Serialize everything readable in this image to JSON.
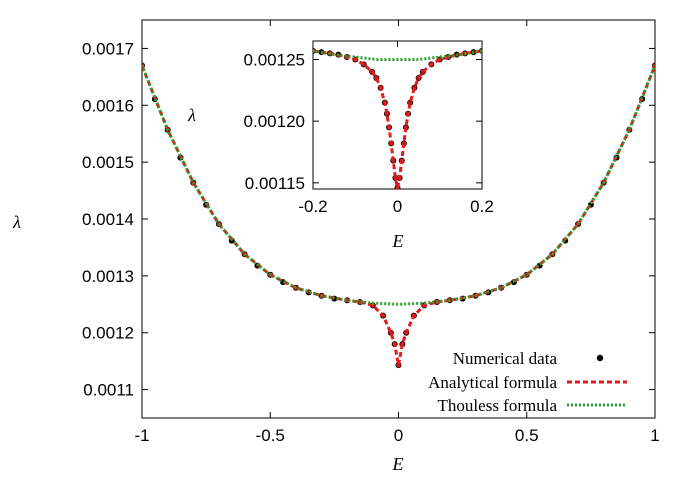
{
  "chart_data": [
    {
      "type": "scatter",
      "ylabel": "λ",
      "xlabel": "E",
      "xlim": [
        -1,
        1
      ],
      "ylim": [
        0.00105,
        0.00175
      ],
      "x_ticks": [
        "-1",
        "-0.5",
        "0",
        "0.5",
        "1"
      ],
      "y_ticks": [
        "0.0011",
        "0.0012",
        "0.0013",
        "0.0014",
        "0.0015",
        "0.0016",
        "0.0017"
      ],
      "legend_position": "bottom-right",
      "series": [
        {
          "name": "Numerical data",
          "style": "points",
          "color": "#000000",
          "x": [
            -1.0,
            -0.95,
            -0.9,
            -0.85,
            -0.8,
            -0.75,
            -0.7,
            -0.65,
            -0.6,
            -0.55,
            -0.5,
            -0.45,
            -0.4,
            -0.35,
            -0.3,
            -0.25,
            -0.2,
            -0.15,
            -0.1,
            -0.06,
            -0.03,
            -0.015,
            0.0,
            0.015,
            0.03,
            0.06,
            0.1,
            0.15,
            0.2,
            0.25,
            0.3,
            0.35,
            0.4,
            0.45,
            0.5,
            0.55,
            0.6,
            0.65,
            0.7,
            0.75,
            0.8,
            0.85,
            0.9,
            0.95,
            1.0
          ],
          "y": [
            0.00167,
            0.001611,
            0.001557,
            0.001508,
            0.001464,
            0.001425,
            0.001391,
            0.001362,
            0.001338,
            0.001318,
            0.001302,
            0.001289,
            0.001279,
            0.001271,
            0.001265,
            0.00126,
            0.001257,
            0.001254,
            0.001248,
            0.00123,
            0.0012,
            0.00118,
            0.001143,
            0.00118,
            0.0012,
            0.00123,
            0.001248,
            0.001254,
            0.001257,
            0.00126,
            0.001265,
            0.001271,
            0.001279,
            0.001289,
            0.001302,
            0.001318,
            0.001338,
            0.001362,
            0.001391,
            0.001425,
            0.001464,
            0.001508,
            0.001557,
            0.001611,
            0.00167
          ]
        },
        {
          "name": "Analytical formula",
          "style": "dashed",
          "color": "#e41a1c",
          "x": [
            -1.0,
            -0.9,
            -0.8,
            -0.7,
            -0.6,
            -0.5,
            -0.4,
            -0.3,
            -0.2,
            -0.15,
            -0.1,
            -0.06,
            -0.03,
            -0.015,
            0.0,
            0.015,
            0.03,
            0.06,
            0.1,
            0.15,
            0.2,
            0.3,
            0.4,
            0.5,
            0.6,
            0.7,
            0.8,
            0.9,
            1.0
          ],
          "y": [
            0.00167,
            0.001557,
            0.001464,
            0.001391,
            0.001338,
            0.001302,
            0.001279,
            0.001265,
            0.001257,
            0.001254,
            0.001248,
            0.00123,
            0.0012,
            0.00118,
            0.001143,
            0.00118,
            0.0012,
            0.00123,
            0.001248,
            0.001254,
            0.001257,
            0.001265,
            0.001279,
            0.001302,
            0.001338,
            0.001391,
            0.001464,
            0.001557,
            0.00167
          ]
        },
        {
          "name": "Thouless formula",
          "style": "dotted",
          "color": "#2ca02c",
          "x": [
            -1.0,
            -0.9,
            -0.8,
            -0.7,
            -0.6,
            -0.5,
            -0.4,
            -0.3,
            -0.2,
            -0.1,
            0.0,
            0.1,
            0.2,
            0.3,
            0.4,
            0.5,
            0.6,
            0.7,
            0.8,
            0.9,
            1.0
          ],
          "y": [
            0.00167,
            0.001557,
            0.001464,
            0.001391,
            0.001338,
            0.001302,
            0.001279,
            0.001265,
            0.001257,
            0.001252,
            0.00125,
            0.001252,
            0.001257,
            0.001265,
            0.001279,
            0.001302,
            0.001338,
            0.001391,
            0.001464,
            0.001557,
            0.00167
          ]
        }
      ]
    },
    {
      "type": "scatter",
      "ylabel": "λ",
      "xlabel": "E",
      "xlim": [
        -0.2,
        0.2
      ],
      "ylim": [
        0.001145,
        0.001265
      ],
      "x_ticks": [
        "-0.2",
        "0",
        "0.2"
      ],
      "y_ticks": [
        "0.00115",
        "0.00120",
        "0.00125"
      ],
      "series": [
        {
          "name": "Numerical data",
          "style": "points",
          "color": "#000000",
          "x": [
            -0.2,
            -0.18,
            -0.16,
            -0.14,
            -0.12,
            -0.1,
            -0.08,
            -0.06,
            -0.05,
            -0.04,
            -0.03,
            -0.025,
            -0.02,
            -0.015,
            -0.01,
            -0.005,
            0.0,
            0.005,
            0.01,
            0.015,
            0.02,
            0.025,
            0.03,
            0.04,
            0.05,
            0.06,
            0.08,
            0.1,
            0.12,
            0.14,
            0.16,
            0.18,
            0.2
          ],
          "y": [
            0.001257,
            0.001256,
            0.001255,
            0.001254,
            0.001252,
            0.00125,
            0.001246,
            0.00124,
            0.001235,
            0.001227,
            0.001215,
            0.001206,
            0.001195,
            0.001182,
            0.001168,
            0.001154,
            0.001146,
            0.001154,
            0.001168,
            0.001182,
            0.001195,
            0.001206,
            0.001215,
            0.001227,
            0.001235,
            0.00124,
            0.001246,
            0.00125,
            0.001252,
            0.001254,
            0.001255,
            0.001256,
            0.001257
          ]
        },
        {
          "name": "Analytical formula",
          "style": "dashed",
          "color": "#e41a1c",
          "x": [
            -0.2,
            -0.16,
            -0.12,
            -0.1,
            -0.08,
            -0.06,
            -0.05,
            -0.04,
            -0.03,
            -0.025,
            -0.02,
            -0.015,
            -0.01,
            -0.005,
            0.0,
            0.005,
            0.01,
            0.015,
            0.02,
            0.025,
            0.03,
            0.04,
            0.05,
            0.06,
            0.08,
            0.1,
            0.12,
            0.16,
            0.2
          ],
          "y": [
            0.001257,
            0.001255,
            0.001252,
            0.00125,
            0.001246,
            0.00124,
            0.001235,
            0.001227,
            0.001215,
            0.001206,
            0.001195,
            0.001182,
            0.001168,
            0.001154,
            0.001146,
            0.001154,
            0.001168,
            0.001182,
            0.001195,
            0.001206,
            0.001215,
            0.001227,
            0.001235,
            0.00124,
            0.001246,
            0.00125,
            0.001252,
            0.001255,
            0.001257
          ]
        },
        {
          "name": "Thouless formula",
          "style": "dotted",
          "color": "#2ca02c",
          "x": [
            -0.2,
            -0.15,
            -0.1,
            -0.05,
            0.0,
            0.05,
            0.1,
            0.15,
            0.2
          ],
          "y": [
            0.001257,
            0.001254,
            0.001252,
            0.00125,
            0.00125,
            0.00125,
            0.001252,
            0.001254,
            0.001257
          ]
        }
      ]
    }
  ]
}
